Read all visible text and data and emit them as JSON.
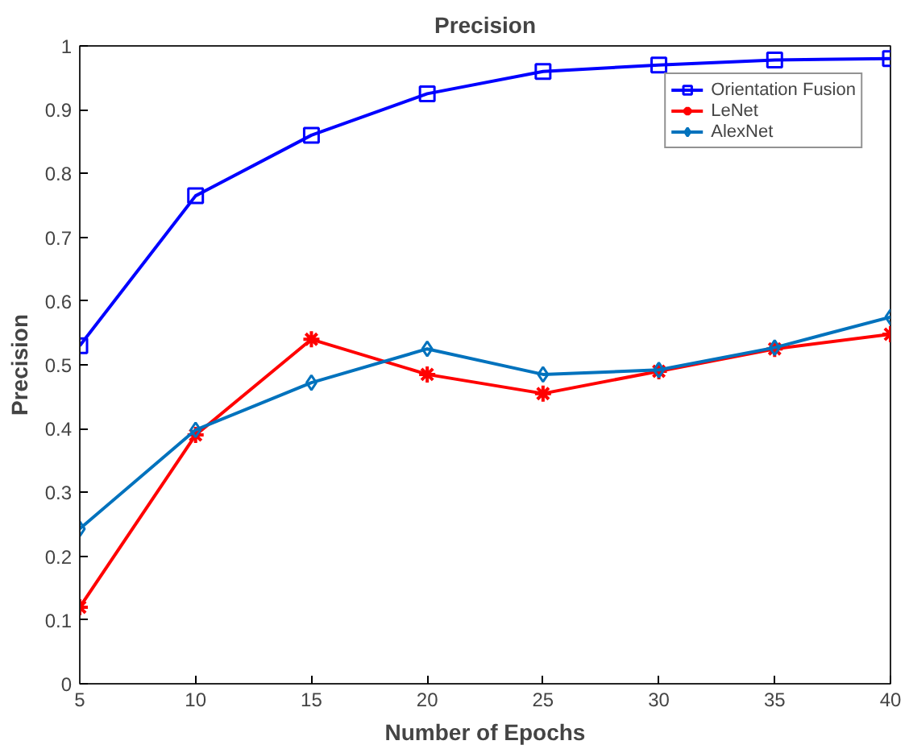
{
  "chart_data": {
    "type": "line",
    "title": "Precision",
    "xlabel": "Number of Epochs",
    "ylabel": "Precision",
    "x": [
      5,
      10,
      15,
      20,
      25,
      30,
      35,
      40
    ],
    "xlim": [
      5,
      40
    ],
    "xticks": [
      5,
      10,
      15,
      20,
      25,
      30,
      35,
      40
    ],
    "ylim": [
      0,
      1
    ],
    "yticks": [
      0,
      0.1,
      0.2,
      0.3,
      0.4,
      0.5,
      0.6,
      0.7,
      0.8,
      0.9,
      1
    ],
    "grid": false,
    "legend": "top right",
    "line_style": "solid",
    "series": [
      {
        "name": "Orientation Fusion",
        "color": "#0000ff",
        "marker": "square",
        "values": [
          0.53,
          0.765,
          0.86,
          0.925,
          0.96,
          0.97,
          0.978,
          0.98
        ]
      },
      {
        "name": "LeNet",
        "color": "#ff0000",
        "marker": "cross",
        "values": [
          0.12,
          0.39,
          0.54,
          0.485,
          0.455,
          0.49,
          0.525,
          0.548
        ]
      },
      {
        "name": "AlexNet",
        "color": "#0072bd",
        "marker": "diamond",
        "values": [
          0.243,
          0.398,
          0.472,
          0.525,
          0.485,
          0.492,
          0.527,
          0.575
        ]
      }
    ]
  }
}
